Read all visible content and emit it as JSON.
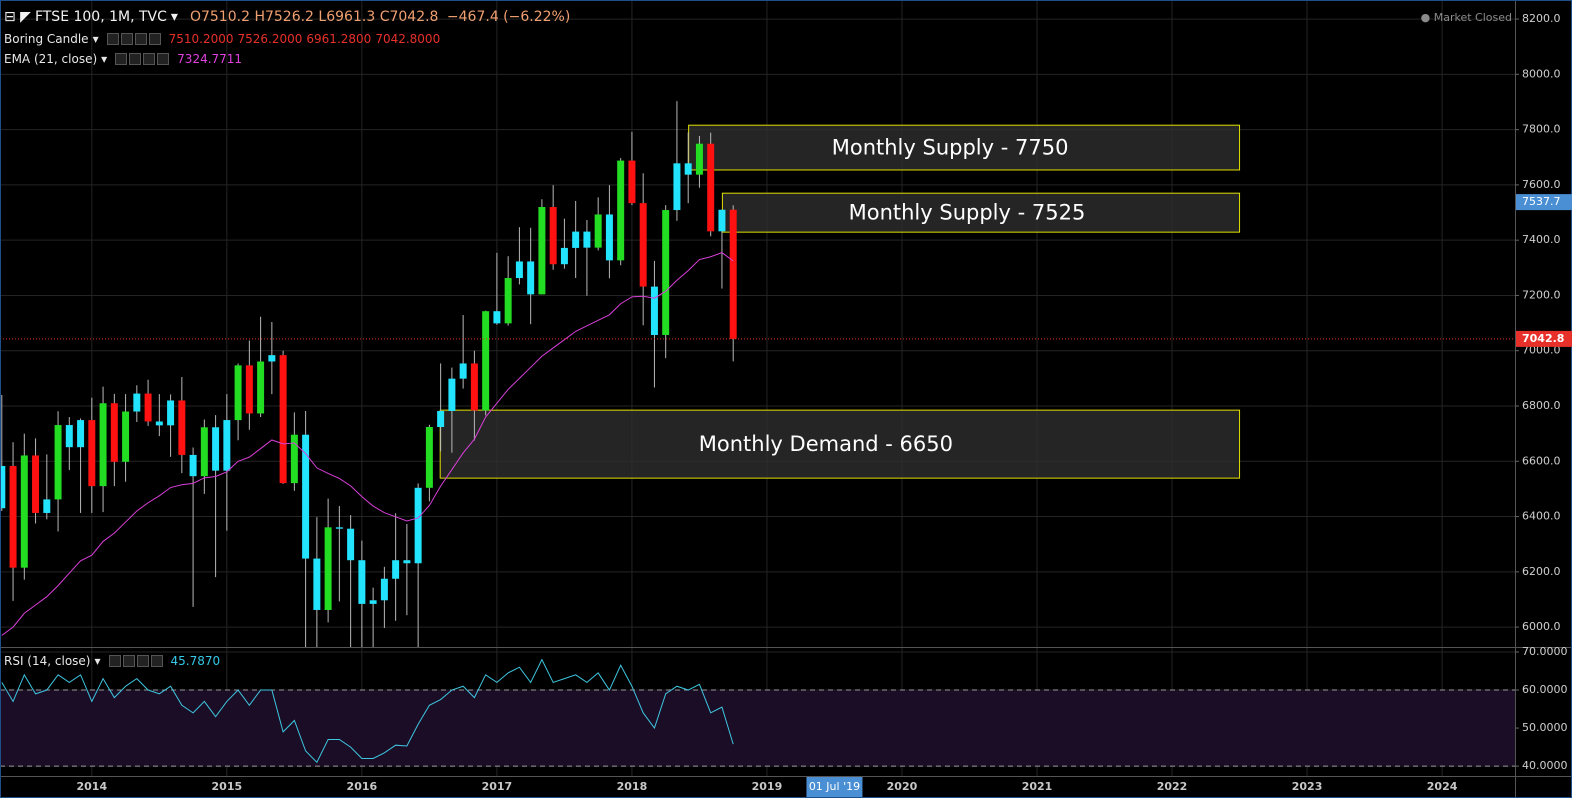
{
  "header": {
    "symbol": "FTSE 100, 1M, TVC",
    "ohlc": [
      {
        "label": "O",
        "value": "7510.2"
      },
      {
        "label": "H",
        "value": "7526.2"
      },
      {
        "label": "L",
        "value": "6961.3"
      },
      {
        "label": "C",
        "value": "7042.8"
      }
    ],
    "change": "−467.4 (−6.22%)",
    "status": "Market Closed"
  },
  "chart_data": [
    {
      "type": "candlestick",
      "x": [
        2013.3333,
        2013.4167,
        2013.5,
        2013.5833,
        2013.6667,
        2013.75,
        2013.8333,
        2013.9167,
        2014,
        2014.0833,
        2014.1667,
        2014.25,
        2014.3333,
        2014.4167,
        2014.5,
        2014.5833,
        2014.6667,
        2014.75,
        2014.8333,
        2014.9167,
        2015,
        2015.0833,
        2015.1667,
        2015.25,
        2015.3333,
        2015.4167,
        2015.5,
        2015.5833,
        2015.6667,
        2015.75,
        2015.8333,
        2015.9167,
        2016,
        2016.0833,
        2016.1667,
        2016.25,
        2016.3333,
        2016.4167,
        2016.5,
        2016.5833,
        2016.6667,
        2016.75,
        2016.8333,
        2016.9167,
        2017,
        2017.0833,
        2017.1667,
        2017.25,
        2017.3333,
        2017.4167,
        2017.5,
        2017.5833,
        2017.6667,
        2017.75,
        2017.8333,
        2017.9167,
        2018,
        2018.0833,
        2018.1667,
        2018.25,
        2018.3333,
        2018.4167,
        2018.5,
        2018.5833,
        2018.6667,
        2018.75
      ],
      "open": [
        6430,
        6583,
        6215,
        6621,
        6413,
        6462,
        6731,
        6651,
        6749,
        6510,
        6810,
        6598,
        6780,
        6845,
        6744,
        6730,
        6820,
        6623,
        6546,
        6723,
        6566,
        6749,
        6947,
        6773,
        6961,
        6984,
        6521,
        6696,
        6248,
        6062,
        6361,
        6356,
        6242,
        6084,
        6097,
        6175,
        6242,
        6231,
        6504,
        6724,
        6782,
        6899,
        6954,
        6784,
        7143,
        7099,
        7263,
        7323,
        7204,
        7520,
        7313,
        7372,
        7431,
        7373,
        7493,
        7327,
        7688,
        7534,
        7232,
        7057,
        7509,
        7678,
        7637,
        7749,
        7432,
        7510.2
      ],
      "high": [
        6840,
        6669,
        6700,
        6683,
        6625,
        6781,
        6760,
        6755,
        6830,
        6870,
        6844,
        6843,
        6875,
        6895,
        6843,
        6842,
        6905,
        6650,
        6751,
        6767,
        6843,
        6954,
        7037,
        7123,
        7104,
        7000,
        6777,
        6782,
        6398,
        6465,
        6438,
        6405,
        6313,
        6143,
        6218,
        6412,
        6373,
        6520,
        6732,
        6954,
        6939,
        7129,
        7000,
        7145,
        7354,
        7342,
        7447,
        7445,
        7548,
        7599,
        7478,
        7542,
        7473,
        7555,
        7599,
        7697,
        7792,
        7642,
        7325,
        7527,
        7903,
        7790,
        7777,
        7789,
        7511,
        7526.2
      ],
      "low": [
        6420,
        6095,
        6172,
        6375,
        6390,
        6346,
        6568,
        6413,
        6413,
        6416,
        6510,
        6526,
        6742,
        6728,
        6691,
        6616,
        6557,
        6073,
        6482,
        6181,
        6349,
        6676,
        6714,
        6760,
        6843,
        6518,
        6493,
        5768,
        5878,
        6017,
        6093,
        5874,
        5639,
        5500,
        5997,
        6023,
        6043,
        5788,
        6455,
        6636,
        6631,
        6863,
        6675,
        6766,
        7094,
        7091,
        7240,
        7096,
        7204,
        7293,
        7297,
        7263,
        7199,
        7363,
        7262,
        7309,
        7527,
        7092,
        6867,
        6973,
        7470,
        7534,
        7590,
        7414,
        7225,
        6961.3
      ],
      "close": [
        6583,
        6215,
        6621,
        6413,
        6462,
        6731,
        6651,
        6749,
        6510,
        6810,
        6598,
        6780,
        6845,
        6744,
        6730,
        6820,
        6623,
        6546,
        6723,
        6566,
        6749,
        6947,
        6773,
        6961,
        6984,
        6521,
        6696,
        6248,
        6062,
        6361,
        6356,
        6242,
        6084,
        6097,
        6175,
        6242,
        6231,
        6504,
        6724,
        6782,
        6899,
        6954,
        6784,
        7143,
        7099,
        7263,
        7323,
        7204,
        7520,
        7313,
        7372,
        7431,
        7373,
        7493,
        7327,
        7688,
        7534,
        7232,
        7057,
        7509,
        7678,
        7637,
        7749,
        7432,
        7510,
        7042.8
      ],
      "colors": {
        "up": "#22dd22",
        "down": "#ff1111",
        "boring": "#22e4ff"
      },
      "wick_color": "#b8b8b8",
      "indicator": {
        "name": "Boring Candle",
        "value_labels": [
          "7510.2000",
          "7526.2000",
          "6961.2800",
          "7042.8000"
        ]
      },
      "overlays": [
        {
          "name": "EMA (21, close)",
          "color": "#d93fd9",
          "value_label": "7324.7711",
          "values": [
            5970,
            6000,
            6050,
            6080,
            6110,
            6150,
            6195,
            6240,
            6260,
            6310,
            6340,
            6380,
            6420,
            6450,
            6475,
            6505,
            6515,
            6520,
            6540,
            6545,
            6562,
            6600,
            6615,
            6646,
            6677,
            6663,
            6666,
            6628,
            6576,
            6556,
            6538,
            6511,
            6472,
            6438,
            6414,
            6399,
            6384,
            6395,
            6440,
            6510,
            6570,
            6630,
            6680,
            6760,
            6810,
            6860,
            6900,
            6940,
            6980,
            7010,
            7040,
            7070,
            7090,
            7110,
            7130,
            7170,
            7195,
            7197,
            7190,
            7215,
            7255,
            7290,
            7330,
            7340,
            7355,
            7324.7711
          ]
        }
      ],
      "zones": [
        {
          "label": "Monthly Supply - 7750",
          "x": [
            2018.42,
            2022.5
          ],
          "y": [
            7654,
            7816
          ]
        },
        {
          "label": "Monthly Supply - 7525",
          "x": [
            2018.67,
            2022.5
          ],
          "y": [
            7429,
            7570
          ]
        },
        {
          "label": "Monthly Demand - 6650",
          "x": [
            2016.58,
            2022.5
          ],
          "y": [
            6539,
            6785
          ]
        }
      ],
      "zone_color": "#e0e000",
      "last_price_color": "#e8302a",
      "crosshair": {
        "price": 7537.7,
        "x": 2019.5,
        "date": "01 Jul '19"
      },
      "xlim": [
        2013.32,
        2024.54
      ],
      "xticks": [
        2014,
        2015,
        2016,
        2017,
        2018,
        2019,
        2020,
        2021,
        2022,
        2023,
        2024
      ],
      "ylim": [
        5928,
        8269
      ],
      "yticks": [
        {
          "value": 6000,
          "label": "6000.0"
        },
        {
          "value": 6200,
          "label": "6200.0"
        },
        {
          "value": 6400,
          "label": "6400.0"
        },
        {
          "value": 6600,
          "label": "6600.0"
        },
        {
          "value": 6800,
          "label": "6800.0"
        },
        {
          "value": 7000,
          "label": "7000.0"
        },
        {
          "value": 7200,
          "label": "7200.0"
        },
        {
          "value": 7400,
          "label": "7400.0"
        },
        {
          "value": 7600,
          "label": "7600.0"
        },
        {
          "value": 7800,
          "label": "7800.0"
        },
        {
          "value": 8000,
          "label": "8000.0"
        },
        {
          "value": 8200,
          "label": "8200.0"
        }
      ],
      "grid": true
    },
    {
      "type": "line",
      "name": "RSI (14, close)",
      "color": "#3ec6e0",
      "value_label": "45.7870",
      "values": [
        62,
        57,
        64,
        59,
        60,
        64,
        62,
        64,
        57,
        63,
        58,
        61,
        63,
        60,
        59,
        61,
        56,
        54,
        57,
        53,
        57,
        60,
        56,
        60,
        60,
        49,
        52,
        44,
        41,
        47,
        47,
        45,
        42,
        42,
        43.5,
        45.5,
        45.3,
        51,
        56,
        57.5,
        60,
        61,
        58,
        64,
        62,
        64.5,
        66,
        62,
        68,
        62,
        63,
        64,
        62,
        64.5,
        60,
        66.5,
        61,
        54,
        50,
        59,
        61,
        60,
        61.5,
        54,
        55.5,
        45.787
      ],
      "bands": [
        40,
        60
      ],
      "band_color": "#1b0d26",
      "ylim": [
        37.4,
        71.05
      ],
      "yticks": [
        {
          "value": 40,
          "label": "40.0000"
        },
        {
          "value": 50,
          "label": "50.0000"
        },
        {
          "value": 60,
          "label": "60.0000"
        },
        {
          "value": 70,
          "label": "70.0000"
        }
      ],
      "grid": true
    }
  ]
}
